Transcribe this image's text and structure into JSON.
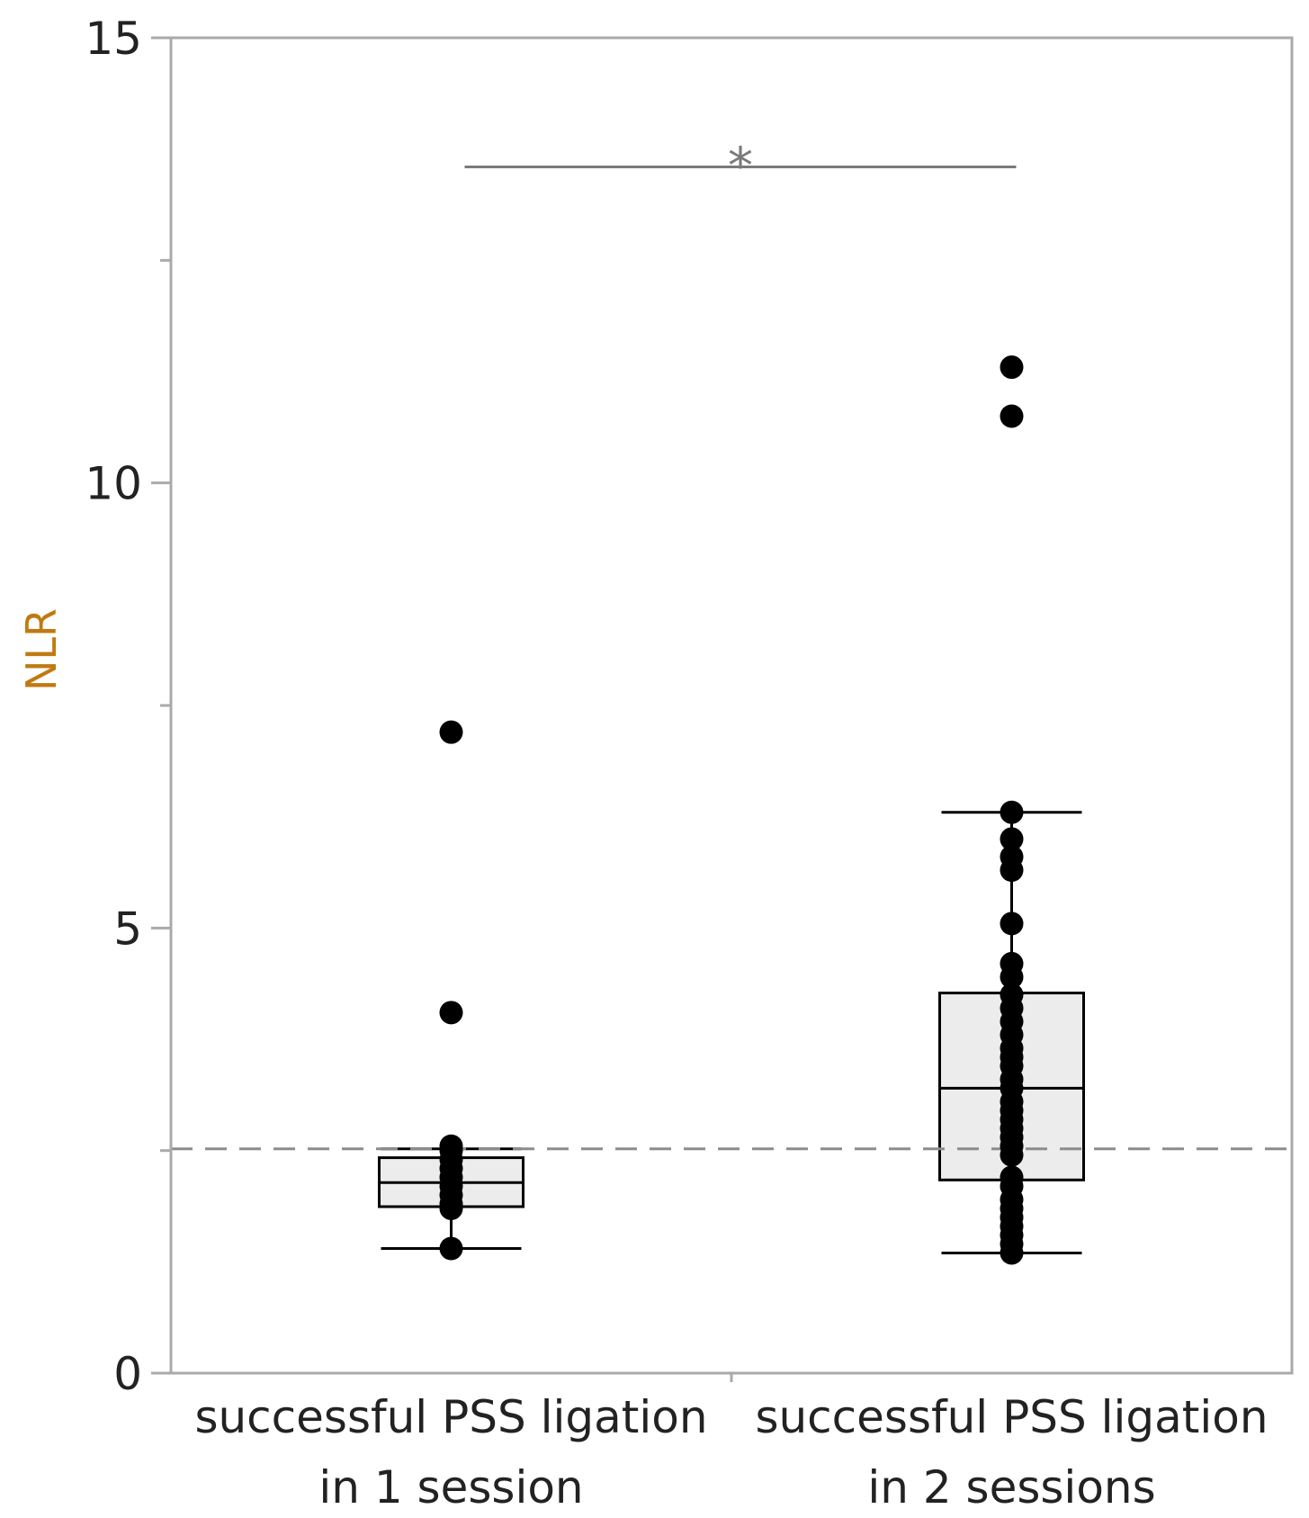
{
  "chart_data": {
    "type": "box",
    "title": "",
    "xlabel": "",
    "ylabel": "NLR",
    "ylim": [
      0,
      15
    ],
    "yticks": [
      0,
      5,
      10,
      15
    ],
    "ytick_labels": [
      "0",
      "5",
      "10",
      "15"
    ],
    "minor_yticks": [
      2.5,
      7.5,
      12.5
    ],
    "grid": false,
    "reference_line": {
      "y": 2.52,
      "style": "dashed"
    },
    "categories": [
      {
        "line1": "successful PSS ligation",
        "line2": "in 1 session"
      },
      {
        "line1": "successful PSS ligation",
        "line2": "in 2 sessions"
      }
    ],
    "boxes": [
      {
        "whisker_low": 1.4,
        "q1": 1.87,
        "median": 2.14,
        "q3": 2.42,
        "whisker_high": 2.52
      },
      {
        "whisker_low": 1.35,
        "q1": 2.17,
        "median": 3.2,
        "q3": 4.27,
        "whisker_high": 6.3
      }
    ],
    "points": [
      [
        1.4,
        1.85,
        1.9,
        2.0,
        2.1,
        2.2,
        2.3,
        2.4,
        2.5,
        2.55,
        4.05,
        7.2
      ],
      [
        1.35,
        1.45,
        1.55,
        1.65,
        1.75,
        1.85,
        1.95,
        2.1,
        2.2,
        2.45,
        2.55,
        2.65,
        2.75,
        2.85,
        2.95,
        3.05,
        3.2,
        3.3,
        3.45,
        3.55,
        3.65,
        3.8,
        3.95,
        4.1,
        4.25,
        4.45,
        4.6,
        5.05,
        5.65,
        5.8,
        6.0,
        6.3,
        10.75,
        11.3
      ]
    ],
    "significance": {
      "label": "*",
      "y": 13.55
    },
    "colors": {
      "box_fill": "#ececec",
      "axis": "#aaaaaa",
      "point": "#000000",
      "reference_line": "#8c8c8c",
      "bracket": "#7a7a7a",
      "ylabel": "#c07a10"
    }
  }
}
